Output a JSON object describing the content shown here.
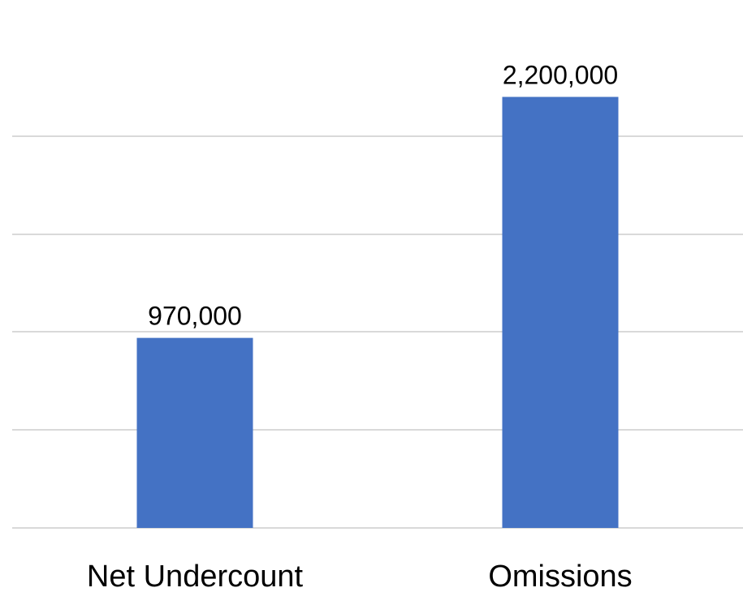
{
  "chart_data": {
    "type": "bar",
    "categories": [
      "Net Undercount",
      "Omissions"
    ],
    "values": [
      970000,
      2200000
    ],
    "data_labels": [
      "970,000",
      "2,200,000"
    ],
    "title": "",
    "xlabel": "",
    "ylabel": "",
    "ylim": [
      0,
      2500000
    ],
    "gridlines": [
      0,
      500000,
      1000000,
      1500000,
      2000000
    ],
    "grid": true,
    "y_axis_labels_shown": false,
    "legend": "none",
    "colors": {
      "bar": "#4472c4",
      "grid": "#d9d9d9",
      "text": "#000000"
    }
  }
}
